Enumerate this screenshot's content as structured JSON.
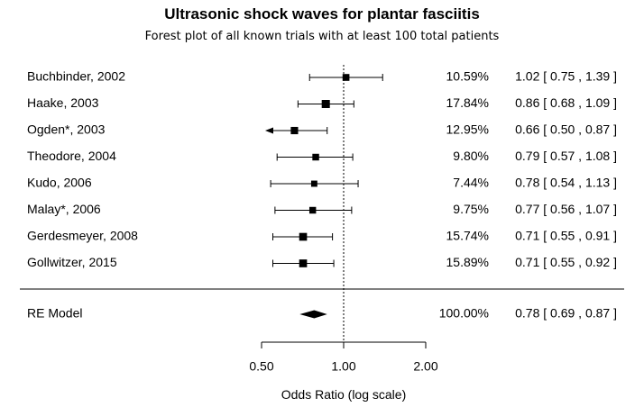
{
  "chart_data": {
    "type": "forest",
    "title": "Ultrasonic shock waves for plantar fasciitis",
    "subtitle": "Forest plot of all known trials with at least 100 total patients",
    "xlabel": "Odds Ratio (log scale)",
    "x_scale": "log",
    "x_ticks": [
      0.5,
      1.0,
      2.0
    ],
    "x_tick_labels": [
      "0.50",
      "1.00",
      "2.00"
    ],
    "reference_line": 1.0,
    "studies": [
      {
        "label": "Buchbinder, 2002",
        "weight_label": "10.59%",
        "ci_label": "1.02 [ 0.75 , 1.39 ]",
        "estimate": 1.02,
        "lower": 0.75,
        "upper": 1.39,
        "weight": 10.59
      },
      {
        "label": "Haake, 2003",
        "weight_label": "17.84%",
        "ci_label": "0.86 [ 0.68 , 1.09 ]",
        "estimate": 0.86,
        "lower": 0.68,
        "upper": 1.09,
        "weight": 17.84
      },
      {
        "label": "Ogden*, 2003",
        "weight_label": "12.95%",
        "ci_label": "0.66 [ 0.50 , 0.87 ]",
        "estimate": 0.66,
        "lower": 0.5,
        "upper": 0.87,
        "weight": 12.95,
        "lower_truncated": true
      },
      {
        "label": "Theodore, 2004",
        "weight_label": "9.80%",
        "ci_label": "0.79 [ 0.57 , 1.08 ]",
        "estimate": 0.79,
        "lower": 0.57,
        "upper": 1.08,
        "weight": 9.8
      },
      {
        "label": "Kudo, 2006",
        "weight_label": "7.44%",
        "ci_label": "0.78 [ 0.54 , 1.13 ]",
        "estimate": 0.78,
        "lower": 0.54,
        "upper": 1.13,
        "weight": 7.44
      },
      {
        "label": "Malay*, 2006",
        "weight_label": "9.75%",
        "ci_label": "0.77 [ 0.56 , 1.07 ]",
        "estimate": 0.77,
        "lower": 0.56,
        "upper": 1.07,
        "weight": 9.75
      },
      {
        "label": "Gerdesmeyer, 2008",
        "weight_label": "15.74%",
        "ci_label": "0.71 [ 0.55 , 0.91 ]",
        "estimate": 0.71,
        "lower": 0.55,
        "upper": 0.91,
        "weight": 15.74
      },
      {
        "label": "Gollwitzer, 2015",
        "weight_label": "15.89%",
        "ci_label": "0.71 [ 0.55 , 0.92 ]",
        "estimate": 0.71,
        "lower": 0.55,
        "upper": 0.92,
        "weight": 15.89
      }
    ],
    "summary": {
      "label": "RE Model",
      "weight_label": "100.00%",
      "ci_label": "0.78 [ 0.69 , 0.87 ]",
      "estimate": 0.78,
      "lower": 0.69,
      "upper": 0.87,
      "weight": 100.0
    }
  }
}
